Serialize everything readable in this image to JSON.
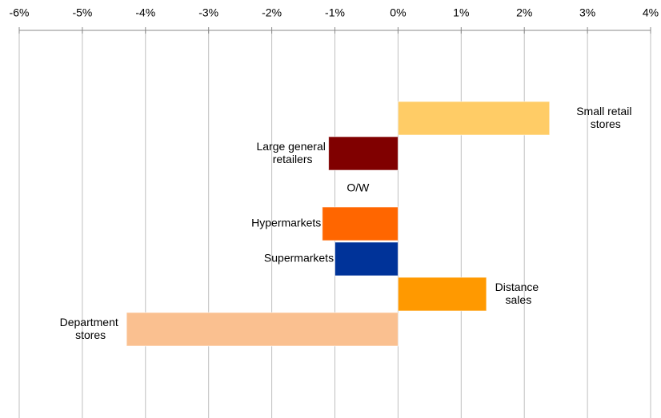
{
  "chart_data": {
    "type": "bar",
    "orientation": "horizontal",
    "categories": [
      "Small retail stores",
      "Large general retailers",
      "O/W",
      "Hypermarkets",
      "Supermarkets",
      "Distance sales",
      "Department stores"
    ],
    "values": [
      2.4,
      -1.1,
      null,
      -1.2,
      -1.0,
      1.4,
      -4.3
    ],
    "colors": [
      "#ffcc66",
      "#800000",
      null,
      "#ff6600",
      "#003399",
      "#ff9900",
      "#fac090"
    ],
    "xlim": [
      -6,
      4
    ],
    "xticks": [
      {
        "value": -6,
        "label": "-6%"
      },
      {
        "value": -5,
        "label": "-5%"
      },
      {
        "value": -4,
        "label": "-4%"
      },
      {
        "value": -3,
        "label": "-3%"
      },
      {
        "value": -2,
        "label": "-2%"
      },
      {
        "value": -1,
        "label": "-1%"
      },
      {
        "value": 0,
        "label": "0%"
      },
      {
        "value": 1,
        "label": "1%"
      },
      {
        "value": 2,
        "label": "2%"
      },
      {
        "value": 3,
        "label": "3%"
      },
      {
        "value": 4,
        "label": "4%"
      }
    ],
    "grid": true
  }
}
